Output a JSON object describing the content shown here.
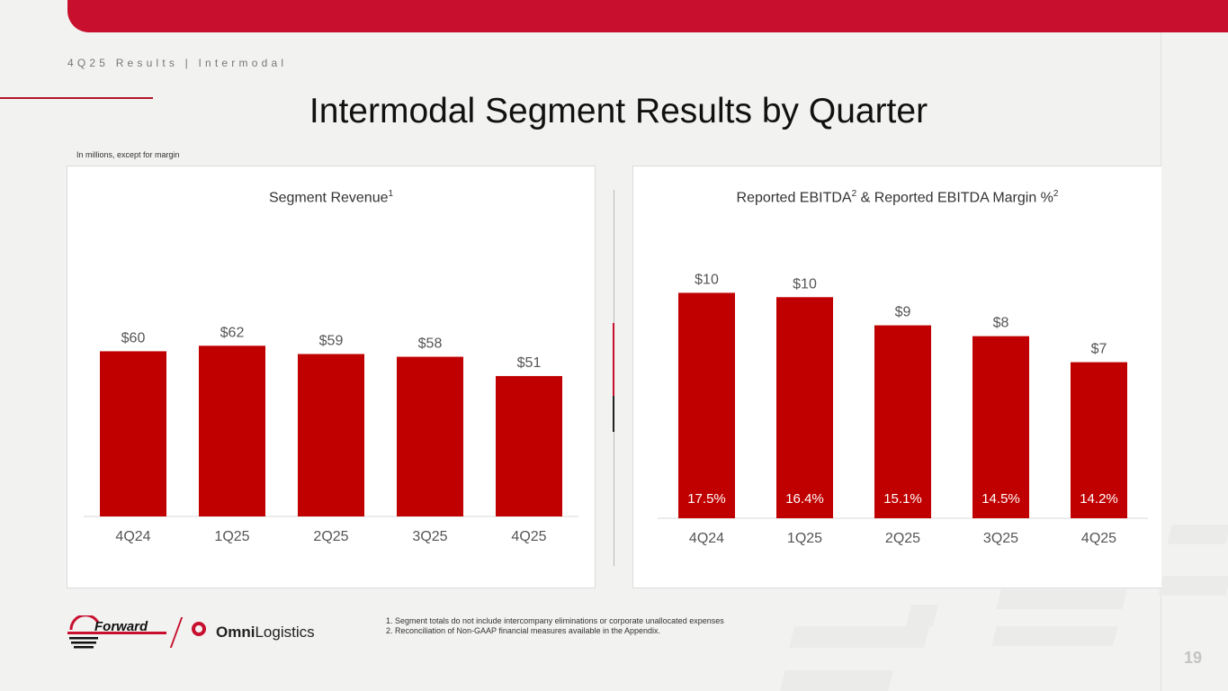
{
  "header": {
    "breadcrumb": "4Q25 Results | Intermodal",
    "title": "Intermodal Segment Results by Quarter",
    "units_note": "In millions, except for margin"
  },
  "colors": {
    "accent": "#c8102e",
    "bar": "#c00000",
    "axis_text": "#555555",
    "label_text": "#555555"
  },
  "chart_data": [
    {
      "type": "bar",
      "title": "Segment Revenue",
      "title_sup": "1",
      "categories": [
        "4Q24",
        "1Q25",
        "2Q25",
        "3Q25",
        "4Q25"
      ],
      "values": [
        60,
        62,
        59,
        58,
        51
      ],
      "value_labels": [
        "$60",
        "$62",
        "$59",
        "$58",
        "$51"
      ],
      "xlabel": "",
      "ylabel": "",
      "ylim": [
        0,
        67
      ],
      "grid": false
    },
    {
      "type": "bar",
      "title": "Reported EBITDA",
      "title_sup": "2",
      "title_mid": " & Reported EBITDA Margin %",
      "title_sup2": "2",
      "categories": [
        "4Q24",
        "1Q25",
        "2Q25",
        "3Q25",
        "4Q25"
      ],
      "values": [
        10.4,
        10.2,
        8.9,
        8.4,
        7.2
      ],
      "value_labels": [
        "$10",
        "$10",
        "$9",
        "$8",
        "$7"
      ],
      "inner_labels": [
        "17.5%",
        "16.4%",
        "15.1%",
        "14.5%",
        "14.2%"
      ],
      "xlabel": "",
      "ylabel": "",
      "ylim": [
        0,
        11
      ],
      "grid": false
    }
  ],
  "logos": {
    "forward": "Forward",
    "omni_bold": "Omni",
    "omni_light": "Logistics"
  },
  "footnotes": [
    "1.  Segment totals do not include intercompany eliminations or corporate unallocated expenses",
    "2.  Reconciliation of Non-GAAP financial measures available in the Appendix."
  ],
  "page_number": "19"
}
